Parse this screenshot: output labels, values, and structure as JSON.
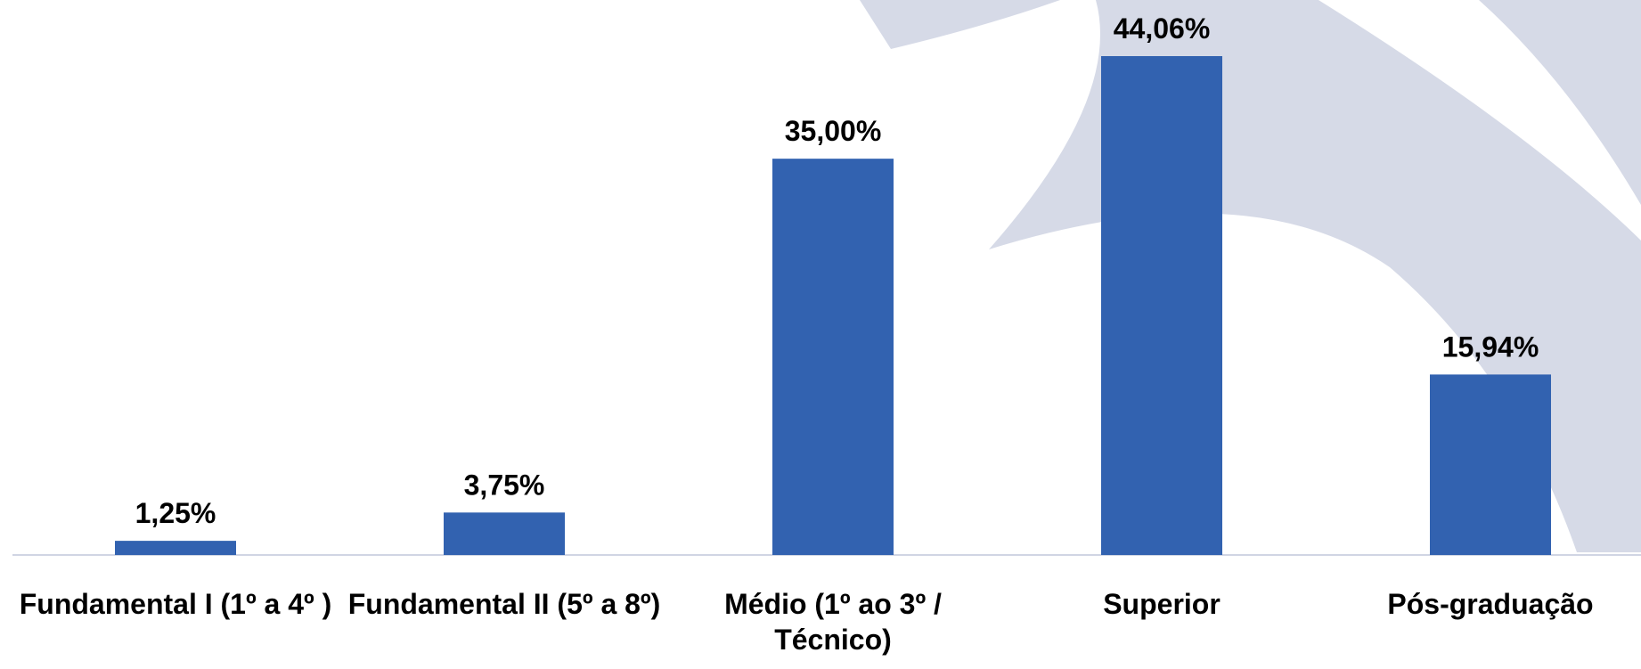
{
  "chart_data": {
    "type": "bar",
    "categories": [
      "Fundamental I (1º a 4º )",
      "Fundamental II (5º a 8º)",
      "Médio (1º ao 3º / Técnico)",
      "Superior",
      "Pós-graduação"
    ],
    "values": [
      1.25,
      3.75,
      35.0,
      44.06,
      15.94
    ],
    "value_labels": [
      "1,25%",
      "3,75%",
      "35,00%",
      "44,06%",
      "15,94%"
    ],
    "color": "#3262b0"
  }
}
